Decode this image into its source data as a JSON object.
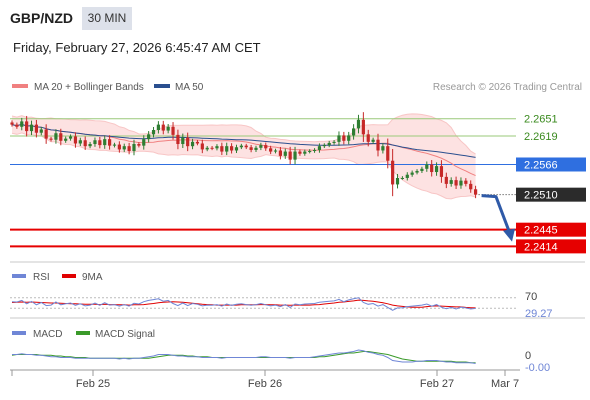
{
  "header": {
    "symbol": "GBP/NZD",
    "timeframe": "30 MIN",
    "datetime": "Friday, February 27, 2026 6:45:47 AM CET"
  },
  "legend": {
    "ma20_bb": "MA 20 + Bollinger Bands",
    "ma50": "MA 50",
    "copyright": "Research © 2026 Trading Central"
  },
  "colors": {
    "ma20": "#f08080",
    "ma50": "#2a4f8f",
    "band_fill": "#fde2e2",
    "bull": "#2e7d32",
    "bear": "#c62828",
    "resistance": "#9ac97a",
    "pivot": "#2f6fe0",
    "support": "#e60000",
    "last_price_bg": "#2b2b2b",
    "arrow": "#2f5aa8",
    "rsi": "#6f86d6",
    "rsi_ma": "#e00000",
    "macd": "#6f86d6",
    "macd_signal": "#3a9a2a"
  },
  "chart_data": {
    "type": "candlestick",
    "symbol": "GBP/NZD",
    "timeframe": "30 MIN",
    "x_ticks": [
      "Feb 25",
      "Feb 26",
      "Feb 27",
      "Mar 7"
    ],
    "ylim": [
      2.2385,
      2.2695
    ],
    "closes": [
      2.264,
      2.2636,
      2.2646,
      2.2628,
      2.264,
      2.2625,
      2.2631,
      2.2614,
      2.2612,
      2.2624,
      2.261,
      2.2614,
      2.2618,
      2.2605,
      2.2611,
      2.26,
      2.2604,
      2.2611,
      2.2602,
      2.2613,
      2.2601,
      2.2603,
      2.2594,
      2.26,
      2.2591,
      2.2604,
      2.2601,
      2.2613,
      2.2622,
      2.263,
      2.264,
      2.2629,
      2.2636,
      2.2621,
      2.2604,
      2.2616,
      2.26,
      2.2608,
      2.2605,
      2.2594,
      2.2597,
      2.2596,
      2.26,
      2.259,
      2.26,
      2.2592,
      2.2598,
      2.2601,
      2.2598,
      2.2593,
      2.2597,
      2.2602,
      2.2596,
      2.259,
      2.2592,
      2.2582,
      2.259,
      2.2575,
      2.259,
      2.2586,
      2.259,
      2.2591,
      2.2593,
      2.26,
      2.2602,
      2.2606,
      2.2608,
      2.262,
      2.261,
      2.262,
      2.2633,
      2.2649,
      2.2622,
      2.2608,
      2.2612,
      2.2592,
      2.26,
      2.2573,
      2.2529,
      2.2541,
      2.2541,
      2.2547,
      2.2551,
      2.2554,
      2.2558,
      2.2566,
      2.2552,
      2.2563,
      2.2543,
      2.253,
      2.2537,
      2.2527,
      2.2536,
      2.253,
      2.252,
      2.251
    ],
    "levels": [
      {
        "value": "2.2651",
        "kind": "resistance"
      },
      {
        "value": "2.2619",
        "kind": "resistance"
      },
      {
        "value": "2.2566",
        "kind": "pivot"
      },
      {
        "value": "2.2510",
        "kind": "last"
      },
      {
        "value": "2.2445",
        "kind": "support"
      },
      {
        "value": "2.2414",
        "kind": "support"
      }
    ],
    "rsi": {
      "name": "RSI",
      "ma_name": "9MA",
      "level_label": "70",
      "value_label": "29.27",
      "ylim": [
        0,
        100
      ],
      "values": [
        55,
        54,
        60,
        47,
        56,
        43,
        52,
        40,
        42,
        54,
        43,
        47,
        50,
        41,
        47,
        39,
        42,
        50,
        41,
        51,
        42,
        44,
        38,
        44,
        38,
        49,
        46,
        55,
        60,
        63,
        66,
        57,
        60,
        48,
        40,
        50,
        40,
        48,
        45,
        39,
        42,
        41,
        44,
        38,
        46,
        41,
        45,
        47,
        44,
        41,
        44,
        48,
        43,
        39,
        42,
        36,
        44,
        33,
        46,
        43,
        46,
        47,
        48,
        53,
        55,
        57,
        58,
        64,
        55,
        62,
        66,
        70,
        52,
        45,
        48,
        38,
        44,
        33,
        22,
        31,
        32,
        36,
        38,
        40,
        42,
        46,
        38,
        44,
        34,
        28,
        33,
        27,
        34,
        31,
        27,
        29.27
      ],
      "ma_values": [
        52,
        53,
        54,
        53,
        54,
        53,
        52,
        51,
        50,
        50,
        49,
        48,
        47,
        47,
        46,
        45,
        45,
        45,
        44,
        45,
        44,
        44,
        43,
        43,
        42,
        43,
        43,
        44,
        46,
        48,
        51,
        53,
        54,
        55,
        54,
        53,
        51,
        49,
        47,
        45,
        44,
        43,
        42,
        42,
        42,
        42,
        42,
        43,
        43,
        43,
        43,
        44,
        44,
        43,
        43,
        42,
        42,
        41,
        42,
        42,
        42,
        42,
        43,
        44,
        46,
        48,
        50,
        53,
        54,
        56,
        58,
        61,
        60,
        58,
        57,
        54,
        51,
        47,
        42,
        39,
        37,
        35,
        34,
        34,
        34,
        36,
        38,
        39,
        38,
        37,
        36,
        35,
        35,
        33,
        32,
        31
      ]
    },
    "macd": {
      "name": "MACD",
      "signal_name": "MACD Signal",
      "level_label": "0",
      "value_label": "-0.00",
      "ylim": [
        -0.0016,
        0.0016
      ],
      "macd_values": [
        0.0002,
        0.0002,
        0.0003,
        0.0002,
        0.0002,
        0.0001,
        0.0001,
        0.0,
        -0.0001,
        -0.0001,
        -0.0002,
        -0.0002,
        -0.0002,
        -0.0003,
        -0.0003,
        -0.0003,
        -0.0003,
        -0.0003,
        -0.0003,
        -0.0003,
        -0.0003,
        -0.0003,
        -0.0004,
        -0.0003,
        -0.0004,
        -0.0003,
        -0.0003,
        -0.0002,
        -0.0001,
        0.0,
        0.0002,
        0.0002,
        0.0002,
        0.0001,
        0.0,
        0.0,
        -0.0001,
        -0.0001,
        -0.0001,
        -0.0002,
        -0.0002,
        -0.0002,
        -0.0002,
        -0.0003,
        -0.0002,
        -0.0002,
        -0.0002,
        -0.0002,
        -0.0002,
        -0.0002,
        -0.0002,
        -0.0001,
        -0.0001,
        -0.0002,
        -0.0002,
        -0.0002,
        -0.0002,
        -0.0003,
        -0.0002,
        -0.0002,
        -0.0002,
        -0.0002,
        -0.0001,
        0.0,
        0.0001,
        0.0002,
        0.0003,
        0.0004,
        0.0004,
        0.0005,
        0.0006,
        0.0008,
        0.0007,
        0.0005,
        0.0004,
        0.0002,
        0.0001,
        -0.0002,
        -0.0006,
        -0.0007,
        -0.0008,
        -0.0008,
        -0.0008,
        -0.0007,
        -0.0007,
        -0.0006,
        -0.0006,
        -0.0006,
        -0.0007,
        -0.0008,
        -0.0008,
        -0.0009,
        -0.0009,
        -0.0009,
        -0.0009,
        -0.001
      ],
      "signal_values": [
        0.0001,
        0.0002,
        0.0002,
        0.0002,
        0.0002,
        0.0002,
        0.0001,
        0.0001,
        0.0001,
        0.0,
        0.0,
        -0.0001,
        -0.0001,
        -0.0002,
        -0.0002,
        -0.0002,
        -0.0003,
        -0.0003,
        -0.0003,
        -0.0003,
        -0.0003,
        -0.0003,
        -0.0003,
        -0.0003,
        -0.0003,
        -0.0003,
        -0.0003,
        -0.0003,
        -0.0003,
        -0.0002,
        -0.0001,
        0.0,
        0.0001,
        0.0001,
        0.0001,
        0.0001,
        0.0,
        0.0,
        -0.0001,
        -0.0001,
        -0.0001,
        -0.0002,
        -0.0002,
        -0.0002,
        -0.0002,
        -0.0002,
        -0.0002,
        -0.0002,
        -0.0002,
        -0.0002,
        -0.0002,
        -0.0002,
        -0.0002,
        -0.0002,
        -0.0002,
        -0.0002,
        -0.0002,
        -0.0002,
        -0.0002,
        -0.0002,
        -0.0002,
        -0.0002,
        -0.0002,
        -0.0001,
        -0.0001,
        0.0,
        0.0001,
        0.0002,
        0.0003,
        0.0004,
        0.0004,
        0.0005,
        0.0006,
        0.0006,
        0.0005,
        0.0004,
        0.0003,
        0.0002,
        0.0,
        -0.0002,
        -0.0004,
        -0.0005,
        -0.0006,
        -0.0007,
        -0.0007,
        -0.0007,
        -0.0007,
        -0.0007,
        -0.0007,
        -0.0007,
        -0.0007,
        -0.0008,
        -0.0008,
        -0.0008,
        -0.0009,
        -0.0009
      ]
    }
  }
}
